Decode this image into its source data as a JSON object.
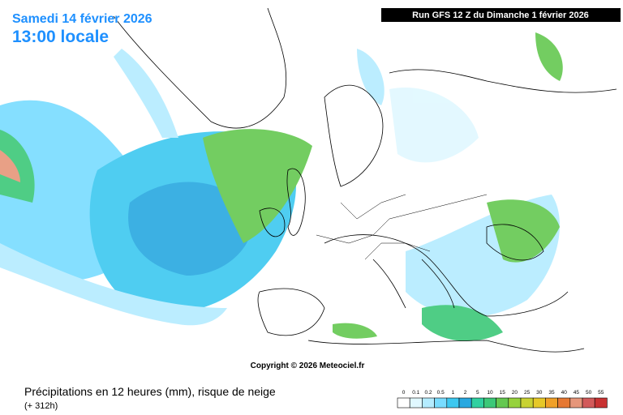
{
  "header": {
    "date": "Samedi 14 février 2026",
    "time": "13:00 locale",
    "run": "Run GFS 12 Z du Dimanche 1 février 2026"
  },
  "map": {
    "copyright": "Copyright © 2026 Meteociel.fr"
  },
  "footer": {
    "title": "Précipitations en 12 heures (mm), risque de neige",
    "lead": "(+ 312h)"
  },
  "legend": {
    "labels": [
      "0",
      "0.1",
      "0.2",
      "0.5",
      "1",
      "2",
      "5",
      "10",
      "15",
      "20",
      "25",
      "30",
      "35",
      "40",
      "45",
      "50",
      "55"
    ],
    "colors": [
      "#ffffff",
      "#e0f8ff",
      "#b4ecff",
      "#78dcff",
      "#3cc8f0",
      "#28a8e0",
      "#30d0a0",
      "#3cc878",
      "#64c850",
      "#96d23c",
      "#c8d232",
      "#e6c828",
      "#f0a028",
      "#e67832",
      "#e6967a",
      "#d25a5a",
      "#c83232"
    ]
  }
}
